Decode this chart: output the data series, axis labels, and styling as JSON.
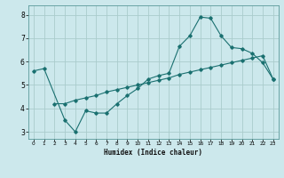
{
  "title": "",
  "xlabel": "Humidex (Indice chaleur)",
  "bg_color": "#cce8ec",
  "grid_color": "#aacccc",
  "line_color": "#1a7070",
  "xlim": [
    -0.5,
    23.5
  ],
  "ylim": [
    2.7,
    8.4
  ],
  "xticks": [
    0,
    1,
    2,
    3,
    4,
    5,
    6,
    7,
    8,
    9,
    10,
    11,
    12,
    13,
    14,
    15,
    16,
    17,
    18,
    19,
    20,
    21,
    22,
    23
  ],
  "yticks": [
    3,
    4,
    5,
    6,
    7,
    8
  ],
  "line1_x": [
    0,
    1,
    3,
    4,
    5,
    6,
    7,
    8,
    9,
    10,
    11,
    12,
    13,
    14,
    15,
    16,
    17,
    18,
    19,
    20,
    21,
    22,
    23
  ],
  "line1_y": [
    5.6,
    5.7,
    3.5,
    3.0,
    3.9,
    3.8,
    3.8,
    4.2,
    4.55,
    4.85,
    5.25,
    5.4,
    5.5,
    6.65,
    7.1,
    7.9,
    7.85,
    7.1,
    6.6,
    6.55,
    6.35,
    5.95,
    5.25
  ],
  "line2_x": [
    2,
    3,
    4,
    5,
    6,
    7,
    8,
    9,
    10,
    11,
    12,
    13,
    14,
    15,
    16,
    17,
    18,
    19,
    20,
    21,
    22,
    23
  ],
  "line2_y": [
    4.2,
    4.2,
    4.35,
    4.45,
    4.55,
    4.7,
    4.8,
    4.9,
    5.0,
    5.1,
    5.2,
    5.3,
    5.45,
    5.55,
    5.65,
    5.75,
    5.85,
    5.95,
    6.05,
    6.15,
    6.25,
    5.25
  ]
}
